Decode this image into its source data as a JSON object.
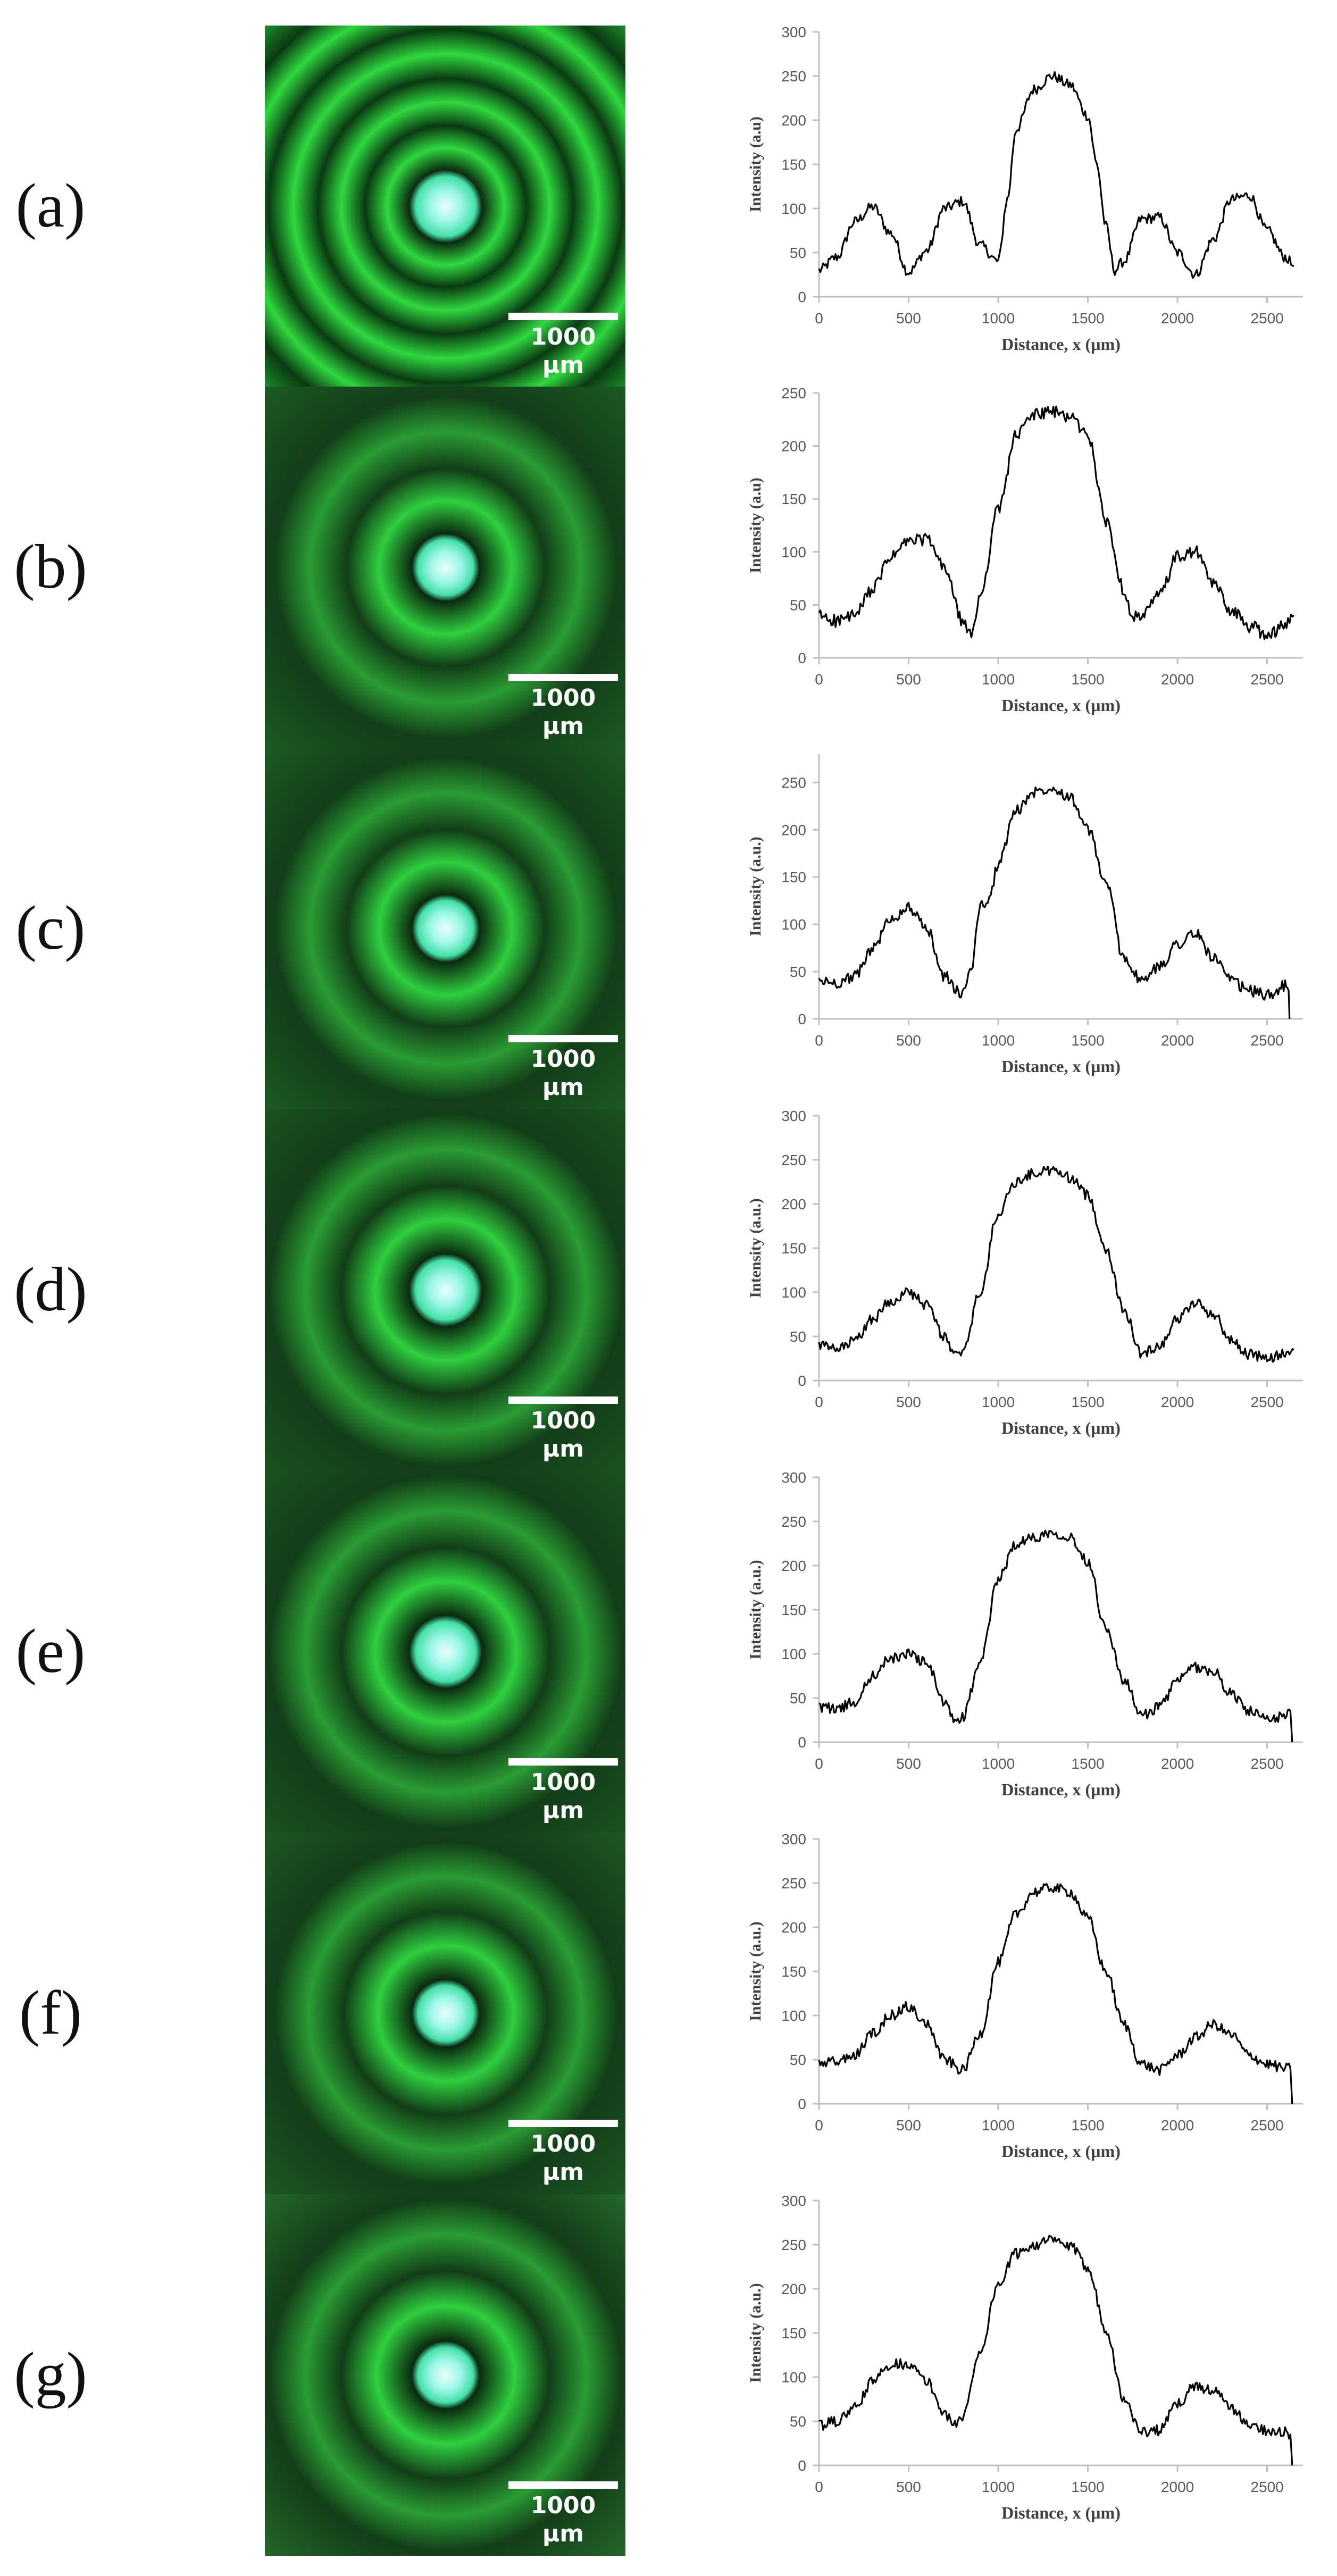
{
  "panels": [
    {
      "label": "(a)",
      "scalebar": "1000 µm",
      "image": {
        "kind": "interference-ring-micrograph",
        "rings": [
          0.14,
          0.31,
          0.49,
          0.68,
          0.87
        ],
        "bg": "#1f9a2f"
      }
    },
    {
      "label": "(b)",
      "scalebar": "1000 µm",
      "image": {
        "kind": "interference-ring-micrograph",
        "rings": [
          0.13,
          0.38,
          0.66
        ],
        "bg": "#1c5c25"
      }
    },
    {
      "label": "(c)",
      "scalebar": "1000 µm",
      "image": {
        "kind": "interference-ring-micrograph",
        "rings": [
          0.13,
          0.38,
          0.66
        ],
        "bg": "#1c5c25"
      }
    },
    {
      "label": "(d)",
      "scalebar": "1000 µm",
      "image": {
        "kind": "interference-ring-micrograph",
        "rings": [
          0.14,
          0.4,
          0.68
        ],
        "bg": "#1b5322"
      }
    },
    {
      "label": "(e)",
      "scalebar": "1000 µm",
      "image": {
        "kind": "interference-ring-micrograph",
        "rings": [
          0.14,
          0.4,
          0.68
        ],
        "bg": "#1b5322"
      }
    },
    {
      "label": "(f)",
      "scalebar": "1000 µm",
      "image": {
        "kind": "interference-ring-micrograph",
        "rings": [
          0.13,
          0.39,
          0.66
        ],
        "bg": "#1f5826"
      }
    },
    {
      "label": "(g)",
      "scalebar": "1000 µm",
      "image": {
        "kind": "interference-ring-micrograph",
        "rings": [
          0.13,
          0.4,
          0.68
        ],
        "bg": "#256a2c"
      }
    }
  ],
  "chart_data": [
    {
      "type": "line",
      "ylabel": "Intensity (a.u)",
      "xlabel": "Distance, x (µm)",
      "xlim": [
        0,
        2700
      ],
      "ylim": [
        0,
        300
      ],
      "xticks": [
        "0",
        "500",
        "1000",
        "1500",
        "2000",
        "2500"
      ],
      "yticks": [
        "0",
        "50",
        "100",
        "150",
        "200",
        "250",
        "300"
      ],
      "series": [
        {
          "x": [
            0,
            100,
            200,
            300,
            400,
            500,
            600,
            700,
            800,
            900,
            1000,
            1050,
            1100,
            1200,
            1300,
            1400,
            1500,
            1550,
            1600,
            1650,
            1700,
            1800,
            1900,
            2000,
            2100,
            2200,
            2300,
            2400,
            2500,
            2600,
            2650
          ],
          "y": [
            30,
            45,
            85,
            102,
            72,
            28,
            52,
            100,
            108,
            58,
            40,
            110,
            190,
            235,
            250,
            240,
            205,
            150,
            80,
            30,
            40,
            88,
            90,
            50,
            25,
            65,
            110,
            115,
            75,
            45,
            35
          ]
        }
      ]
    },
    {
      "type": "line",
      "ylabel": "Intensity (a.u)",
      "xlabel": "Distance, x (µm)",
      "xlim": [
        0,
        2700
      ],
      "ylim": [
        0,
        250
      ],
      "xticks": [
        "0",
        "500",
        "1000",
        "1500",
        "2000",
        "2500"
      ],
      "yticks": [
        "0",
        "50",
        "100",
        "150",
        "200",
        "250"
      ],
      "series": [
        {
          "x": [
            0,
            100,
            200,
            300,
            400,
            500,
            600,
            700,
            800,
            850,
            900,
            1000,
            1100,
            1200,
            1300,
            1400,
            1500,
            1600,
            1700,
            1750,
            1800,
            1900,
            2000,
            2100,
            2200,
            2300,
            2400,
            2500,
            2600,
            2650
          ],
          "y": [
            40,
            35,
            40,
            65,
            95,
            110,
            112,
            85,
            35,
            20,
            60,
            140,
            210,
            230,
            232,
            228,
            210,
            130,
            65,
            40,
            38,
            60,
            95,
            100,
            70,
            45,
            30,
            22,
            30,
            40
          ]
        }
      ]
    },
    {
      "type": "line",
      "ylabel": "Intensity (a.u.)",
      "xlabel": "Distance, x (µm)",
      "xlim": [
        0,
        2700
      ],
      "ylim": [
        0,
        280
      ],
      "xticks": [
        "0",
        "500",
        "1000",
        "1500",
        "2000",
        "2500"
      ],
      "yticks": [
        "0",
        "50",
        "100",
        "150",
        "200",
        "250"
      ],
      "series": [
        {
          "x": [
            0,
            100,
            200,
            300,
            400,
            500,
            600,
            700,
            800,
            850,
            900,
            950,
            1000,
            1100,
            1200,
            1300,
            1400,
            1500,
            1600,
            1700,
            1800,
            1900,
            2000,
            2100,
            2200,
            2300,
            2400,
            2500,
            2600,
            2620,
            2625
          ],
          "y": [
            40,
            38,
            45,
            75,
            105,
            118,
            95,
            45,
            25,
            55,
            120,
            125,
            165,
            220,
            240,
            245,
            235,
            200,
            145,
            65,
            40,
            55,
            80,
            90,
            65,
            40,
            30,
            25,
            35,
            30,
            0
          ]
        }
      ]
    },
    {
      "type": "line",
      "ylabel": "Intensity (a.u.)",
      "xlabel": "Distance, x (µm)",
      "xlim": [
        0,
        2700
      ],
      "ylim": [
        0,
        300
      ],
      "xticks": [
        "0",
        "500",
        "1000",
        "1500",
        "2000",
        "2500"
      ],
      "yticks": [
        "0",
        "50",
        "100",
        "150",
        "200",
        "250",
        "300"
      ],
      "series": [
        {
          "x": [
            0,
            100,
            200,
            300,
            400,
            500,
            600,
            700,
            750,
            800,
            900,
            1000,
            1100,
            1200,
            1300,
            1400,
            1500,
            1600,
            1700,
            1800,
            1900,
            2000,
            2100,
            2200,
            2300,
            2400,
            2500,
            2600,
            2650
          ],
          "y": [
            40,
            35,
            45,
            70,
            90,
            100,
            85,
            50,
            30,
            30,
            100,
            190,
            225,
            235,
            238,
            230,
            210,
            150,
            80,
            30,
            40,
            70,
            88,
            75,
            45,
            30,
            25,
            30,
            35
          ]
        }
      ]
    },
    {
      "type": "line",
      "ylabel": "Intensity (a.u.)",
      "xlabel": "Distance, x (µm)",
      "xlim": [
        0,
        2700
      ],
      "ylim": [
        0,
        300
      ],
      "xticks": [
        "0",
        "500",
        "1000",
        "1500",
        "2000",
        "2500"
      ],
      "yticks": [
        "0",
        "50",
        "100",
        "150",
        "200",
        "250",
        "300"
      ],
      "series": [
        {
          "x": [
            0,
            100,
            200,
            300,
            400,
            500,
            600,
            700,
            750,
            800,
            900,
            1000,
            1100,
            1200,
            1300,
            1400,
            1500,
            1600,
            1700,
            1800,
            1900,
            2000,
            2100,
            2200,
            2300,
            2400,
            2500,
            2600,
            2630,
            2640
          ],
          "y": [
            40,
            38,
            45,
            75,
            95,
            100,
            90,
            45,
            25,
            28,
            90,
            185,
            225,
            232,
            238,
            232,
            205,
            130,
            70,
            30,
            40,
            70,
            85,
            80,
            55,
            35,
            25,
            30,
            35,
            0
          ]
        }
      ]
    },
    {
      "type": "line",
      "ylabel": "Intensity (a.u.)",
      "xlabel": "Distance, x (µm)",
      "xlim": [
        0,
        2700
      ],
      "ylim": [
        0,
        300
      ],
      "xticks": [
        "0",
        "500",
        "1000",
        "1500",
        "2000",
        "2500"
      ],
      "yticks": [
        "0",
        "50",
        "100",
        "150",
        "200",
        "250",
        "300"
      ],
      "series": [
        {
          "x": [
            0,
            100,
            200,
            300,
            400,
            500,
            600,
            700,
            800,
            900,
            1000,
            1100,
            1200,
            1300,
            1400,
            1500,
            1600,
            1700,
            1800,
            1900,
            2000,
            2100,
            2200,
            2300,
            2400,
            2500,
            2600,
            2630,
            2640
          ],
          "y": [
            45,
            48,
            55,
            80,
            100,
            110,
            90,
            50,
            38,
            80,
            160,
            215,
            240,
            245,
            240,
            210,
            150,
            90,
            45,
            38,
            55,
            75,
            90,
            78,
            55,
            45,
            40,
            40,
            0
          ]
        }
      ]
    },
    {
      "type": "line",
      "ylabel": "Intensity (a.u.)",
      "xlabel": "Distance, x (µm)",
      "xlim": [
        0,
        2700
      ],
      "ylim": [
        0,
        300
      ],
      "xticks": [
        "0",
        "500",
        "1000",
        "1500",
        "2000",
        "2500"
      ],
      "yticks": [
        "0",
        "50",
        "100",
        "150",
        "200",
        "250",
        "300"
      ],
      "series": [
        {
          "x": [
            0,
            100,
            200,
            300,
            400,
            500,
            600,
            700,
            750,
            800,
            900,
            1000,
            1100,
            1200,
            1300,
            1400,
            1500,
            1600,
            1700,
            1800,
            1900,
            2000,
            2100,
            2200,
            2300,
            2400,
            2500,
            2600,
            2630,
            2640
          ],
          "y": [
            45,
            50,
            65,
            95,
            115,
            115,
            95,
            60,
            45,
            55,
            130,
            205,
            240,
            250,
            255,
            248,
            225,
            155,
            75,
            38,
            40,
            70,
            90,
            85,
            65,
            45,
            40,
            38,
            35,
            0
          ]
        }
      ]
    }
  ]
}
